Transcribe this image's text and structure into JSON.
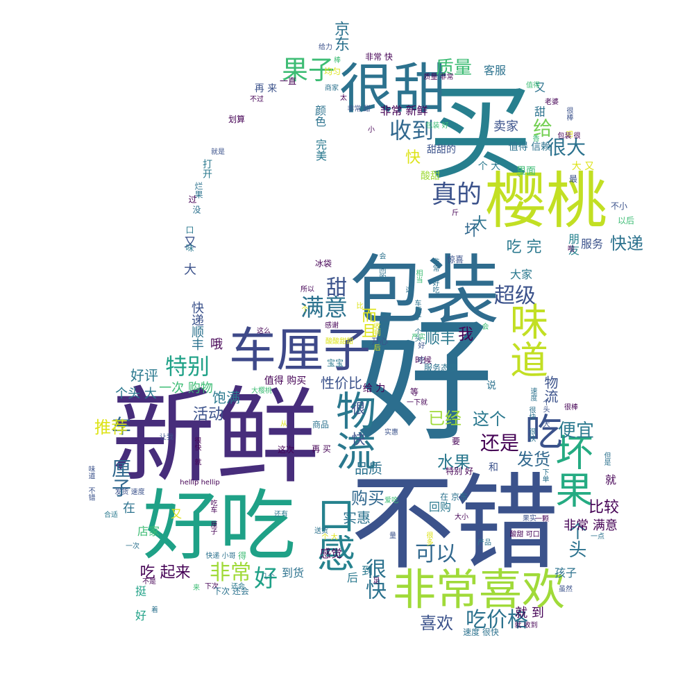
{
  "words": [
    {
      "text": "好",
      "color": "#2c6e8e"
    },
    {
      "text": "不错",
      "color": "#3b528b"
    },
    {
      "text": "新鲜",
      "color": "#472d7b"
    },
    {
      "text": "买",
      "color": "#277f8e"
    },
    {
      "text": "包装",
      "color": "#2f6c8e"
    },
    {
      "text": "好吃",
      "color": "#1fa187"
    },
    {
      "text": "樱桃",
      "color": "#c2df23"
    },
    {
      "text": "很甜",
      "color": "#2c728e"
    },
    {
      "text": "车厘子",
      "color": "#3e4989"
    },
    {
      "text": "非常喜欢",
      "color": "#a0da39"
    },
    {
      "text": "味道",
      "color": "#c2df23"
    },
    {
      "text": "物流",
      "color": "#2a788e"
    },
    {
      "text": "坏果",
      "color": "#25ab82"
    },
    {
      "text": "口感",
      "color": "#26828e"
    },
    {
      "text": "吃",
      "color": "#3b528b"
    },
    {
      "text": "果子",
      "color": "#3dbc74"
    },
    {
      "text": "真的",
      "color": "#3b528b"
    },
    {
      "text": "满意",
      "color": "#2c728e"
    },
    {
      "text": "特别",
      "color": "#1fa187"
    },
    {
      "text": "收到",
      "color": "#31688e"
    },
    {
      "text": "吃价格",
      "color": "#2c728e"
    },
    {
      "text": "非常",
      "color": "#a0da39"
    },
    {
      "text": "好",
      "color": "#1fa187"
    },
    {
      "text": "可以",
      "color": "#31688e"
    },
    {
      "text": "很快",
      "color": "#2c728e"
    },
    {
      "text": "超级",
      "color": "#3b528b"
    },
    {
      "text": "质量",
      "color": "#3dbc74"
    },
    {
      "text": "快递",
      "color": "#2c728e"
    },
    {
      "text": "很大",
      "color": "#2c728e"
    },
    {
      "text": "还是",
      "color": "#440154"
    },
    {
      "text": "便宜",
      "color": "#2a788e"
    },
    {
      "text": "给",
      "color": "#75d054"
    },
    {
      "text": "车 厘子",
      "color": "#31688e"
    },
    {
      "text": "推荐",
      "color": "#dde318"
    },
    {
      "text": "水果",
      "color": "#2a788e"
    },
    {
      "text": "个头",
      "color": "#2c728e"
    },
    {
      "text": "已经",
      "color": "#a0da39"
    },
    {
      "text": "这个",
      "color": "#2a788e"
    },
    {
      "text": "发货",
      "color": "#31688e"
    },
    {
      "text": "购买",
      "color": "#31688e"
    },
    {
      "text": "喜欢",
      "color": "#3b528b"
    },
    {
      "text": "吃 起来",
      "color": "#440154"
    },
    {
      "text": "比较",
      "color": "#440154"
    },
    {
      "text": "坏",
      "color": "#31688e"
    },
    {
      "text": "大",
      "color": "#2c728e"
    },
    {
      "text": "吃 完",
      "color": "#2a788e"
    },
    {
      "text": "甜",
      "color": "#3b528b"
    },
    {
      "text": "活动",
      "color": "#3b528b"
    },
    {
      "text": "我",
      "color": "#440154"
    },
    {
      "text": "顺丰",
      "color": "#2a788e"
    },
    {
      "text": "京东",
      "color": "#2c728e"
    },
    {
      "text": "卖家",
      "color": "#3b528b"
    },
    {
      "text": "非常 满意",
      "color": "#440154"
    },
    {
      "text": "就 到",
      "color": "#440154"
    },
    {
      "text": "孩子",
      "color": "#2c728e"
    },
    {
      "text": "好评",
      "color": "#2a788e"
    },
    {
      "text": "饱满",
      "color": "#2a788e"
    },
    {
      "text": "性价比",
      "color": "#3b528b"
    },
    {
      "text": "品质",
      "color": "#2c728e"
    },
    {
      "text": "实惠",
      "color": "#2c728e"
    },
    {
      "text": "回购",
      "color": "#2a788e"
    },
    {
      "text": "客服",
      "color": "#2c728e"
    },
    {
      "text": "而且",
      "color": "#dde318"
    },
    {
      "text": "非常 新鲜",
      "color": "#440154"
    },
    {
      "text": "快",
      "color": "#dde318"
    },
    {
      "text": "一次 购物",
      "color": "#3dbc74"
    },
    {
      "text": "很 快",
      "color": "#3b528b"
    },
    {
      "text": "物流",
      "color": "#3b528b"
    },
    {
      "text": "服务",
      "color": "#3b528b"
    },
    {
      "text": "朋友",
      "color": "#26828e"
    },
    {
      "text": "大家",
      "color": "#2a788e"
    },
    {
      "text": "颜色",
      "color": "#2c728e"
    },
    {
      "text": "完美",
      "color": "#2a788e"
    },
    {
      "text": "甜甜的",
      "color": "#3b528b"
    },
    {
      "text": "值得 信赖",
      "color": "#2c728e"
    },
    {
      "text": "又 甜",
      "color": "#2c728e"
    },
    {
      "text": "个 大",
      "color": "#2a788e"
    },
    {
      "text": "大 又",
      "color": "#dde318"
    },
    {
      "text": "里面",
      "color": "#3dbc74"
    },
    {
      "text": "酸甜",
      "color": "#a0da39"
    },
    {
      "text": "最",
      "color": "#3b528b"
    },
    {
      "text": "斤",
      "color": "#440154"
    },
    {
      "text": "不小",
      "color": "#3b528b"
    },
    {
      "text": "以后",
      "color": "#3dbc74"
    },
    {
      "text": "哦",
      "color": "#440154"
    },
    {
      "text": "快递",
      "color": "#3b528b"
    },
    {
      "text": "顺丰",
      "color": "#2c728e"
    },
    {
      "text": "又 大",
      "color": "#3b528b"
    },
    {
      "text": "个头 大",
      "color": "#2a788e"
    },
    {
      "text": "店家",
      "color": "#3dbc74"
    },
    {
      "text": "到货",
      "color": "#2c728e"
    },
    {
      "text": "感觉",
      "color": "#440154"
    },
    {
      "text": "后",
      "color": "#2a788e"
    },
    {
      "text": "到",
      "color": "#2a788e"
    },
    {
      "text": "挺 好",
      "color": "#1fa187"
    },
    {
      "text": "在",
      "color": "#2c728e"
    },
    {
      "text": "又",
      "color": "#dde318"
    },
    {
      "text": "值得 购买",
      "color": "#440154"
    },
    {
      "text": "给 力",
      "color": "#440154"
    },
    {
      "text": "说",
      "color": "#2c728e"
    },
    {
      "text": "等",
      "color": "#440154"
    },
    {
      "text": "和",
      "color": "#3b528b"
    },
    {
      "text": "就",
      "color": "#440154"
    },
    {
      "text": "要",
      "color": "#440154"
    },
    {
      "text": "划算",
      "color": "#440154"
    },
    {
      "text": "再 来",
      "color": "#3b528b"
    },
    {
      "text": "一直",
      "color": "#440154"
    },
    {
      "text": "不过",
      "color": "#440154"
    },
    {
      "text": "就是",
      "color": "#3b528b"
    },
    {
      "text": "打开",
      "color": "#2a788e"
    },
    {
      "text": "烂果",
      "color": "#2c728e"
    },
    {
      "text": "过",
      "color": "#440154"
    },
    {
      "text": "没",
      "color": "#2c728e"
    },
    {
      "text": "口 味",
      "color": "#2a788e"
    },
    {
      "text": "冰袋",
      "color": "#440154"
    },
    {
      "text": "惊喜",
      "color": "#3b528b"
    },
    {
      "text": "所以",
      "color": "#440154"
    },
    {
      "text": "这么",
      "color": "#440154"
    },
    {
      "text": "宝宝",
      "color": "#2a788e"
    },
    {
      "text": "开心",
      "color": "#3b528b"
    },
    {
      "text": "时候",
      "color": "#440154"
    },
    {
      "text": "服务态度",
      "color": "#2c728e"
    },
    {
      "text": "商品",
      "color": "#2c728e"
    },
    {
      "text": "再 买",
      "color": "#440154"
    },
    {
      "text": "这次",
      "color": "#440154"
    },
    {
      "text": "特别 好",
      "color": "#440154"
    },
    {
      "text": "在 京东",
      "color": "#2c728e"
    },
    {
      "text": "大小",
      "color": "#440154"
    },
    {
      "text": "产品",
      "color": "#2c728e"
    },
    {
      "text": "酸甜 可口",
      "color": "#440154"
    },
    {
      "text": "下单",
      "color": "#2c728e"
    },
    {
      "text": "一颗",
      "color": "#440154"
    },
    {
      "text": "一点",
      "color": "#2c728e"
    },
    {
      "text": "很棒",
      "color": "#440154"
    },
    {
      "text": "但是",
      "color": "#2c728e"
    },
    {
      "text": "下次",
      "color": "#440154"
    },
    {
      "text": "还会",
      "color": "#2a788e"
    },
    {
      "text": "下次 还会",
      "color": "#2c728e"
    },
    {
      "text": "快递 小哥",
      "color": "#2c728e"
    },
    {
      "text": "得",
      "color": "#3dbc74"
    },
    {
      "text": "送货",
      "color": "#2c728e"
    },
    {
      "text": "足",
      "color": "#440154"
    },
    {
      "text": "速度 很快",
      "color": "#2c728e"
    },
    {
      "text": "就 收到",
      "color": "#440154"
    },
    {
      "text": "虽然",
      "color": "#3b528b"
    },
    {
      "text": "老婆",
      "color": "#440154"
    },
    {
      "text": "商家",
      "color": "#2c728e"
    },
    {
      "text": "给力",
      "color": "#3b528b"
    },
    {
      "text": "均匀",
      "color": "#dde318"
    },
    {
      "text": "非常 快",
      "color": "#440154"
    },
    {
      "text": "质量 非常",
      "color": "#440154"
    },
    {
      "text": "太",
      "color": "#440154"
    },
    {
      "text": "很棒",
      "color": "#3b528b"
    },
    {
      "text": "合适",
      "color": "#2a788e"
    },
    {
      "text": "一次",
      "color": "#2c728e"
    },
    {
      "text": "不是",
      "color": "#440154"
    },
    {
      "text": "着",
      "color": "#2c728e"
    },
    {
      "text": "来",
      "color": "#3dbc74"
    },
    {
      "text": "味道 不错",
      "color": "#3b528b"
    },
    {
      "text": "很快 就",
      "color": "#440154"
    },
    {
      "text": "hellip hellip",
      "color": "#440154"
    },
    {
      "text": "发货 速度",
      "color": "#3b528b"
    },
    {
      "text": "还有",
      "color": "#2a788e"
    },
    {
      "text": "几个",
      "color": "#2c728e"
    },
    {
      "text": "吃车 厘子",
      "color": "#440154"
    },
    {
      "text": "从",
      "color": "#dde318"
    },
    {
      "text": "大樱桃",
      "color": "#3dbc74"
    },
    {
      "text": "感谢",
      "color": "#440154"
    },
    {
      "text": "酸酸甜甜",
      "color": "#dde318"
    },
    {
      "text": "会 回购",
      "color": "#2c728e"
    },
    {
      "text": "收到 后",
      "color": "#dde318"
    },
    {
      "text": "个",
      "color": "#dde318"
    },
    {
      "text": "非常 甜",
      "color": "#3b528b"
    },
    {
      "text": "包装 好",
      "color": "#3dbc74"
    },
    {
      "text": "值得",
      "color": "#3dbc74"
    },
    {
      "text": "吧",
      "color": "#dde318"
    },
    {
      "text": "很多",
      "color": "#dde318"
    },
    {
      "text": "让我",
      "color": "#3b528b"
    },
    {
      "text": "爱吃",
      "color": "#3dbc74"
    },
    {
      "text": "实惠",
      "color": "#3b528b"
    },
    {
      "text": "果实",
      "color": "#3b528b"
    },
    {
      "text": "相当",
      "color": "#3dbc74"
    },
    {
      "text": "非常 好吃",
      "color": "#2c728e"
    },
    {
      "text": "速度",
      "color": "#2c728e"
    },
    {
      "text": "量",
      "color": "#3b528b"
    },
    {
      "text": "啦",
      "color": "#440154"
    },
    {
      "text": "棒",
      "color": "#3dbc74"
    },
    {
      "text": "小",
      "color": "#440154"
    },
    {
      "text": "香",
      "color": "#3dbc74"
    },
    {
      "text": "会",
      "color": "#3dbc74"
    },
    {
      "text": "这",
      "color": "#2c728e"
    },
    {
      "text": "比",
      "color": "#dde318"
    },
    {
      "text": "车厘子 个头",
      "color": "#2c728e"
    },
    {
      "text": "严实",
      "color": "#3dbc74"
    },
    {
      "text": "好 吃",
      "color": "#3b528b"
    },
    {
      "text": "很快 很快",
      "color": "#2c728e"
    },
    {
      "text": "个头 大",
      "color": "#3b528b"
    },
    {
      "text": "包装 很",
      "color": "#440154"
    },
    {
      "text": "个 大",
      "color": "#dde318"
    },
    {
      "text": "一下就",
      "color": "#440154"
    },
    {
      "text": "棒子",
      "color": "#dde318"
    },
    {
      "text": "个大",
      "color": "#a0da39"
    },
    {
      "text": "会 回购",
      "color": "#2c728e"
    },
    {
      "text": "一次",
      "color": "#440154"
    }
  ]
}
